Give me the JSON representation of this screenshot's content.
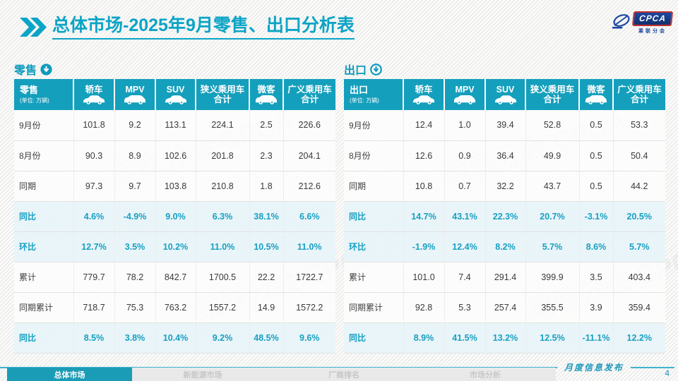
{
  "header": {
    "title_bold": "总体市场",
    "title_rest": "-2025年9月零售、出口分析表",
    "logo": {
      "badge": "CPCA",
      "subtitle": "乘联分会"
    }
  },
  "colors": {
    "accent": "#149fbc",
    "pct_text": "#17a0c3",
    "pct_bg": "#e8f4f8",
    "title": "#0ba4c6"
  },
  "watermark_text": "乘联分会 CPCA",
  "tables": [
    {
      "section_label": "零售",
      "corner_label": "零售",
      "unit_label": "(单位: 万辆)",
      "arrow_icon": "arrow-down-circle-solid-icon",
      "columns": [
        {
          "label": "轿车",
          "icon": "sedan-icon"
        },
        {
          "label": "MPV",
          "icon": "mpv-icon"
        },
        {
          "label": "SUV",
          "icon": "suv-icon"
        },
        {
          "label": "狭义乘用车 合计",
          "icon": null
        },
        {
          "label": "微客",
          "icon": "minibus-icon"
        },
        {
          "label": "广义乘用车 合计",
          "icon": null
        }
      ],
      "rows": [
        {
          "label": "9月份",
          "type": "plain",
          "values": [
            "101.8",
            "9.2",
            "113.1",
            "224.1",
            "2.5",
            "226.6"
          ]
        },
        {
          "label": "8月份",
          "type": "plain",
          "values": [
            "90.3",
            "8.9",
            "102.6",
            "201.8",
            "2.3",
            "204.1"
          ]
        },
        {
          "label": "同期",
          "type": "plain",
          "values": [
            "97.3",
            "9.7",
            "103.8",
            "210.8",
            "1.8",
            "212.6"
          ]
        },
        {
          "label": "同比",
          "type": "pct",
          "values": [
            "4.6%",
            "-4.9%",
            "9.0%",
            "6.3%",
            "38.1%",
            "6.6%"
          ]
        },
        {
          "label": "环比",
          "type": "pct",
          "values": [
            "12.7%",
            "3.5%",
            "10.2%",
            "11.0%",
            "10.5%",
            "11.0%"
          ]
        },
        {
          "label": "累计",
          "type": "plain",
          "values": [
            "779.7",
            "78.2",
            "842.7",
            "1700.5",
            "22.2",
            "1722.7"
          ]
        },
        {
          "label": "同期累计",
          "type": "plain",
          "values": [
            "718.7",
            "75.3",
            "763.2",
            "1557.2",
            "14.9",
            "1572.2"
          ]
        },
        {
          "label": "同比",
          "type": "pct",
          "values": [
            "8.5%",
            "3.8%",
            "10.4%",
            "9.2%",
            "48.5%",
            "9.6%"
          ]
        }
      ]
    },
    {
      "section_label": "出口",
      "corner_label": "出口",
      "unit_label": "(单位: 万辆)",
      "arrow_icon": "arrow-down-circle-ring-icon",
      "columns": [
        {
          "label": "轿车",
          "icon": "sedan-icon"
        },
        {
          "label": "MPV",
          "icon": "mpv-icon"
        },
        {
          "label": "SUV",
          "icon": "suv-icon"
        },
        {
          "label": "狭义乘用车 合计",
          "icon": null
        },
        {
          "label": "微客",
          "icon": "minibus-icon"
        },
        {
          "label": "广义乘用车 合计",
          "icon": null
        }
      ],
      "rows": [
        {
          "label": "9月份",
          "type": "plain",
          "values": [
            "12.4",
            "1.0",
            "39.4",
            "52.8",
            "0.5",
            "53.3"
          ]
        },
        {
          "label": "8月份",
          "type": "plain",
          "values": [
            "12.6",
            "0.9",
            "36.4",
            "49.9",
            "0.5",
            "50.4"
          ]
        },
        {
          "label": "同期",
          "type": "plain",
          "values": [
            "10.8",
            "0.7",
            "32.2",
            "43.7",
            "0.5",
            "44.2"
          ]
        },
        {
          "label": "同比",
          "type": "pct",
          "values": [
            "14.7%",
            "43.1%",
            "22.3%",
            "20.7%",
            "-3.1%",
            "20.5%"
          ]
        },
        {
          "label": "环比",
          "type": "pct",
          "values": [
            "-1.9%",
            "12.4%",
            "8.2%",
            "5.7%",
            "8.6%",
            "5.7%"
          ]
        },
        {
          "label": "累计",
          "type": "plain",
          "values": [
            "101.0",
            "7.4",
            "291.4",
            "399.9",
            "3.5",
            "403.4"
          ]
        },
        {
          "label": "同期累计",
          "type": "plain",
          "values": [
            "92.8",
            "5.3",
            "257.4",
            "355.5",
            "3.9",
            "359.4"
          ]
        },
        {
          "label": "同比",
          "type": "pct",
          "values": [
            "8.9%",
            "41.5%",
            "13.2%",
            "12.5%",
            "-11.1%",
            "12.2%"
          ]
        }
      ]
    }
  ],
  "footer": {
    "release_label": "月度信息发布",
    "page_number": "4"
  },
  "tabs": [
    {
      "label": "总体市场",
      "active": true
    },
    {
      "label": "新能源市场",
      "active": false
    },
    {
      "label": "厂商排名",
      "active": false
    },
    {
      "label": "市场分析",
      "active": false
    }
  ]
}
